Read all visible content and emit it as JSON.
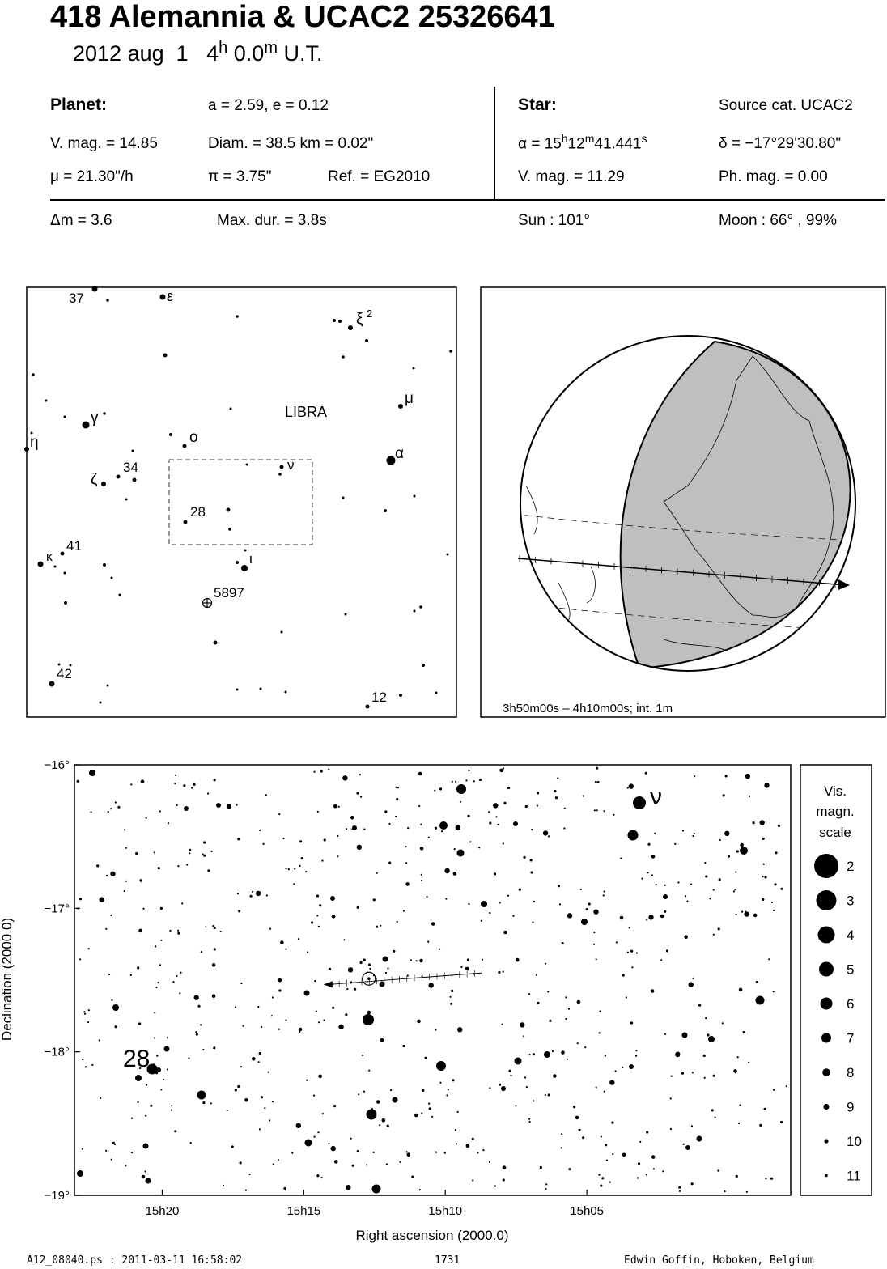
{
  "header": {
    "title": "418 Alemannia  &  UCAC2 25326641",
    "date": "2012 aug  1   4",
    "time_h_sup": "h",
    "time_m": " 0.0",
    "time_m_sup": "m",
    "time_ut": " U.T."
  },
  "planet": {
    "label": "Planet:",
    "a_e": "a = 2.59, e = 0.12",
    "vmag": "V. mag. = 14.85",
    "diam": "Diam. = 38.5 km = 0.02\"",
    "mu": "μ =  21.30\"/h",
    "pi": "π =  3.75\"",
    "ref": "Ref. = EG2010"
  },
  "star": {
    "label": "Star:",
    "source": "Source cat.  UCAC2",
    "alpha_prefix": "α = 15",
    "alpha_h": "h",
    "alpha_mid": "12",
    "alpha_m": "m",
    "alpha_sec": "41.441",
    "alpha_s": "s",
    "delta": "δ = −17°29'30.80\"",
    "vmag": "V. mag. = 11.29",
    "phmag": "Ph. mag. =  0.00"
  },
  "event": {
    "dm": "Δm = 3.6",
    "maxdur": "Max. dur. = 3.8s",
    "sun": "Sun : 101°",
    "moon": "Moon :  66° , 99%"
  },
  "finder": {
    "constellation": "LIBRA",
    "labels": {
      "n37": "37",
      "eps": "ε",
      "xi": "ξ",
      "xi_sup": "2",
      "mu": "μ",
      "gamma": "γ",
      "eta": "η",
      "omicron": "ο",
      "nu": "ν",
      "alpha": "α",
      "zeta": "ζ",
      "n34": "34",
      "n28": "28",
      "kappa": "κ",
      "n41": "41",
      "iota": "ι",
      "n5897": "5897",
      "n42": "42",
      "n12": "12"
    }
  },
  "globe": {
    "caption": "3h50m00s –  4h10m00s; int.  1m"
  },
  "chart_data": {
    "type": "scatter",
    "title": "",
    "xlabel": "Right ascension (2000.0)",
    "ylabel": "Declination (2000.0)",
    "x_ticks": [
      "15h20",
      "15h15",
      "15h10",
      "15h05"
    ],
    "y_ticks": [
      "−16°",
      "−17°",
      "−18°",
      "−19°"
    ],
    "xlim_ra_min": [
      1283.1,
      1257.8
    ],
    "ylim_dec": [
      -19.0,
      -16.0
    ],
    "star_labels": [
      {
        "name": "28",
        "ra_min": 1280.2,
        "dec": -18.15
      },
      {
        "name": "ν",
        "ra_min": 1262.0,
        "dec": -16.25
      }
    ],
    "path": {
      "ra_start_min": 1268.7,
      "ra_end_min": 1274.3,
      "dec_start": -17.45,
      "dec_end": -17.53
    },
    "event_star": {
      "ra_min": 1272.7,
      "dec": -17.49
    },
    "legend": {
      "title_lines": [
        "Vis.",
        "magn.",
        "scale"
      ],
      "mags": [
        "2",
        "3",
        "4",
        "5",
        "6",
        "7",
        "8",
        "9",
        "10",
        "11"
      ]
    }
  },
  "footer": {
    "file": "A12_08040.ps : 2011-03-11 16:58:02",
    "page": "1731",
    "author": "Edwin Goffin, Hoboken, Belgium"
  }
}
